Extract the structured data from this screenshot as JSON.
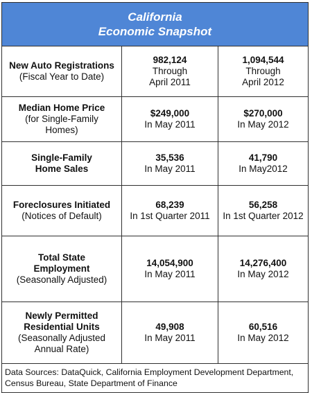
{
  "title": {
    "line1": "California",
    "line2": "Economic Snapshot"
  },
  "rows": [
    {
      "label_bold": [
        "New Auto Registrations"
      ],
      "label_normal": [
        "(Fiscal Year to Date)"
      ],
      "col1_value": "982,124",
      "col1_sub": [
        "Through",
        "April 2011"
      ],
      "col2_value": "1,094,544",
      "col2_sub": [
        "Through",
        "April 2012"
      ]
    },
    {
      "label_bold": [
        "Median Home Price"
      ],
      "label_normal": [
        "(for Single-Family",
        "Homes)"
      ],
      "col1_value": "$249,000",
      "col1_sub": [
        "In May 2011"
      ],
      "col2_value": "$270,000",
      "col2_sub": [
        "In May 2012"
      ]
    },
    {
      "label_bold": [
        "Single-Family",
        "Home Sales"
      ],
      "label_normal": [],
      "col1_value": "35,536",
      "col1_sub": [
        "In May 2011"
      ],
      "col2_value": "41,790",
      "col2_sub": [
        "In May2012"
      ]
    },
    {
      "label_bold": [
        "Foreclosures Initiated"
      ],
      "label_normal": [
        "(Notices of Default)"
      ],
      "col1_value": "68,239",
      "col1_sub": [
        "In 1st Quarter 2011"
      ],
      "col2_value": "56,258",
      "col2_sub": [
        "In 1st Quarter 2012"
      ]
    },
    {
      "label_bold": [
        "Total State",
        "Employment"
      ],
      "label_normal": [
        "(Seasonally Adjusted)"
      ],
      "col1_value": "14,054,900",
      "col1_sub": [
        "In May 2011"
      ],
      "col2_value": "14,276,400",
      "col2_sub": [
        "In May 2012"
      ]
    },
    {
      "label_bold": [
        "Newly Permitted",
        "Residential Units"
      ],
      "label_normal": [
        "(Seasonally Adjusted",
        "Annual Rate)"
      ],
      "col1_value": "49,908",
      "col1_sub": [
        "In May 2011"
      ],
      "col2_value": "60,516",
      "col2_sub": [
        "In May 2012"
      ]
    }
  ],
  "footer": {
    "line1": "Data Sources: DataQuick, California Employment Development Department,",
    "line2": "Census Bureau, State Department of Finance"
  },
  "colors": {
    "header_bg": "#4f86d6",
    "header_text": "#ffffff",
    "border": "#2f2f2f"
  }
}
